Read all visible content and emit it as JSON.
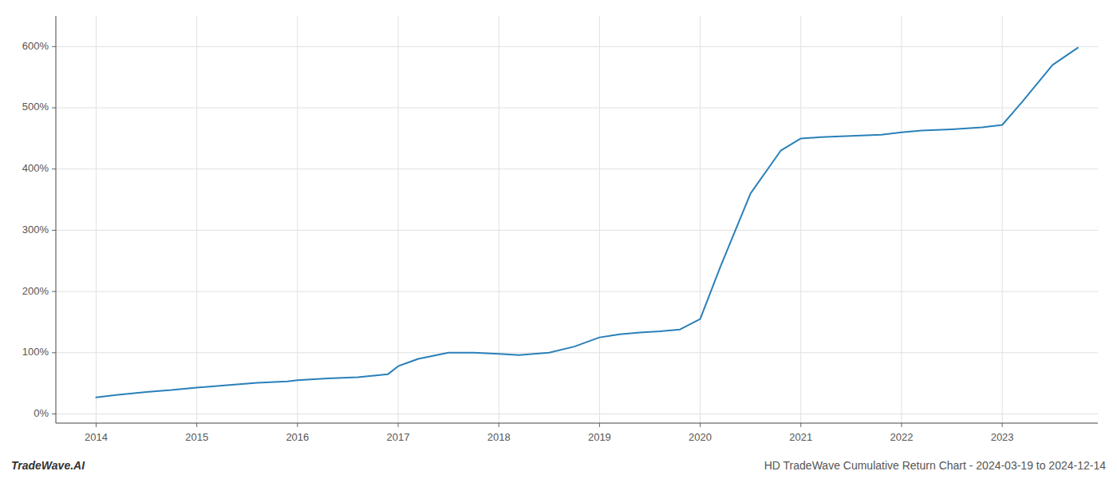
{
  "chart_data": {
    "type": "line",
    "x": [
      2014.0,
      2014.2,
      2014.5,
      2014.75,
      2015.0,
      2015.3,
      2015.6,
      2015.9,
      2016.0,
      2016.3,
      2016.6,
      2016.9,
      2017.0,
      2017.2,
      2017.5,
      2017.75,
      2018.0,
      2018.2,
      2018.5,
      2018.75,
      2019.0,
      2019.2,
      2019.4,
      2019.6,
      2019.8,
      2020.0,
      2020.2,
      2020.5,
      2020.8,
      2021.0,
      2021.2,
      2021.5,
      2021.8,
      2022.0,
      2022.2,
      2022.5,
      2022.8,
      2023.0,
      2023.2,
      2023.5,
      2023.75
    ],
    "values": [
      27,
      31,
      36,
      39,
      43,
      47,
      51,
      53,
      55,
      58,
      60,
      65,
      78,
      90,
      100,
      100,
      98,
      96,
      100,
      110,
      125,
      130,
      133,
      135,
      138,
      155,
      240,
      360,
      430,
      450,
      452,
      454,
      456,
      460,
      463,
      465,
      468,
      472,
      510,
      570,
      598
    ],
    "color": "#2980b9",
    "xlim": [
      2013.6,
      2023.95
    ],
    "ylim": [
      -15,
      650
    ],
    "xticks": [
      2014,
      2015,
      2016,
      2017,
      2018,
      2019,
      2020,
      2021,
      2022,
      2023
    ],
    "yticks": [
      {
        "value": 0,
        "label": "0%"
      },
      {
        "value": 100,
        "label": "100%"
      },
      {
        "value": 200,
        "label": "200%"
      },
      {
        "value": 300,
        "label": "300%"
      },
      {
        "value": 400,
        "label": "400%"
      },
      {
        "value": 500,
        "label": "500%"
      },
      {
        "value": 600,
        "label": "600%"
      }
    ],
    "grid": true,
    "annotations": [
      "TradeWave.AI",
      "HD TradeWave Cumulative Return Chart - 2024-03-19 to 2024-12-14"
    ]
  }
}
